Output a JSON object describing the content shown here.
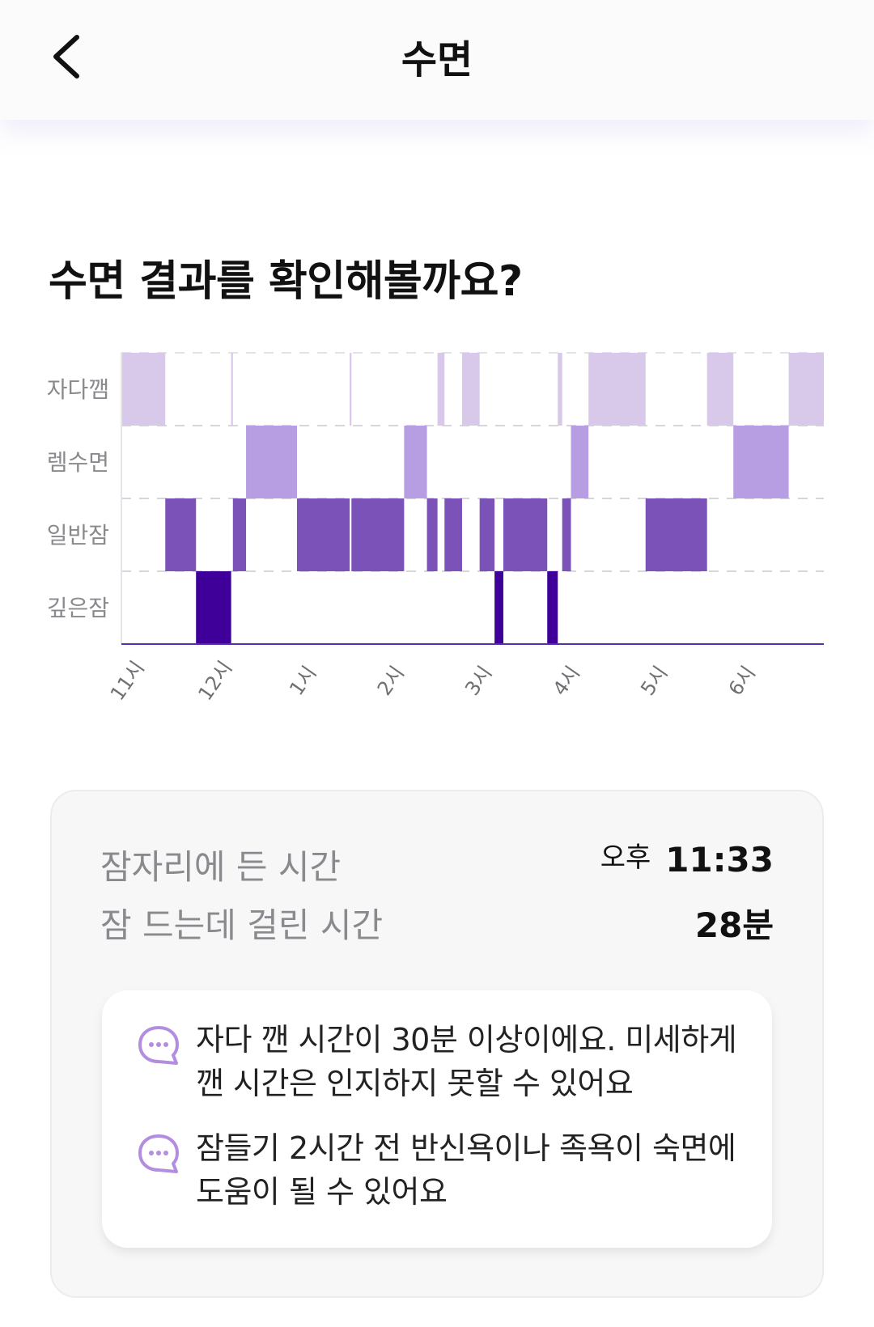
{
  "header": {
    "title": "수면"
  },
  "headline": "수면 결과를 확인해볼까요?",
  "chart_data": {
    "type": "timeline",
    "stages": [
      "자다깸",
      "렘수면",
      "일반잠",
      "깊은잠"
    ],
    "x_ticks": [
      "11시",
      "12시",
      "1시",
      "2시",
      "3시",
      "4시",
      "5시",
      "6시"
    ],
    "x_start_hour": 23.0,
    "x_end_hour": 31.0,
    "colors": {
      "자다깸": "#d8c8ea",
      "렘수면": "#b79de2",
      "일반잠": "#7b52b8",
      "깊은잠": "#3e0098"
    },
    "segments": [
      {
        "stage": "자다깸",
        "start": 23.0,
        "end": 23.5
      },
      {
        "stage": "일반잠",
        "start": 23.5,
        "end": 23.85
      },
      {
        "stage": "깊은잠",
        "start": 23.85,
        "end": 24.25
      },
      {
        "stage": "자다깸",
        "start": 24.25,
        "end": 24.27
      },
      {
        "stage": "일반잠",
        "start": 24.27,
        "end": 24.42
      },
      {
        "stage": "렘수면",
        "start": 24.42,
        "end": 25.0
      },
      {
        "stage": "일반잠",
        "start": 25.0,
        "end": 25.6
      },
      {
        "stage": "자다깸",
        "start": 25.6,
        "end": 25.62
      },
      {
        "stage": "일반잠",
        "start": 25.62,
        "end": 26.22
      },
      {
        "stage": "렘수면",
        "start": 26.22,
        "end": 26.48
      },
      {
        "stage": "일반잠",
        "start": 26.48,
        "end": 26.6
      },
      {
        "stage": "자다깸",
        "start": 26.6,
        "end": 26.68
      },
      {
        "stage": "일반잠",
        "start": 26.68,
        "end": 26.88
      },
      {
        "stage": "자다깸",
        "start": 26.88,
        "end": 27.08
      },
      {
        "stage": "일반잠",
        "start": 27.08,
        "end": 27.25
      },
      {
        "stage": "깊은잠",
        "start": 27.25,
        "end": 27.35
      },
      {
        "stage": "일반잠",
        "start": 27.35,
        "end": 27.85
      },
      {
        "stage": "깊은잠",
        "start": 27.85,
        "end": 27.97
      },
      {
        "stage": "자다깸",
        "start": 27.97,
        "end": 28.02
      },
      {
        "stage": "일반잠",
        "start": 28.02,
        "end": 28.12
      },
      {
        "stage": "렘수면",
        "start": 28.12,
        "end": 28.32
      },
      {
        "stage": "자다깸",
        "start": 28.32,
        "end": 28.97
      },
      {
        "stage": "일반잠",
        "start": 28.97,
        "end": 29.67
      },
      {
        "stage": "자다깸",
        "start": 29.67,
        "end": 29.97
      },
      {
        "stage": "렘수면",
        "start": 29.97,
        "end": 30.6
      },
      {
        "stage": "자다깸",
        "start": 30.6,
        "end": 31.0
      }
    ]
  },
  "summary": {
    "bedtime_label": "잠자리에 든 시간",
    "bedtime_ampm": "오후",
    "bedtime_value": "11:33",
    "latency_label": "잠 드는데 걸린 시간",
    "latency_value": "28분"
  },
  "tips": [
    {
      "icon": "chat-bubble-icon",
      "text": "자다 깬 시간이 30분 이상이에요. 미세하게 깬 시간은 인지하지 못할 수 있어요"
    },
    {
      "icon": "chat-bubble-icon",
      "text": "잠들기 2시간 전 반신욕이나 족욕이 숙면에 도움이 될 수 있어요"
    }
  ],
  "colors": {
    "accent": "#b79de2",
    "icon": "#b38ee0"
  }
}
